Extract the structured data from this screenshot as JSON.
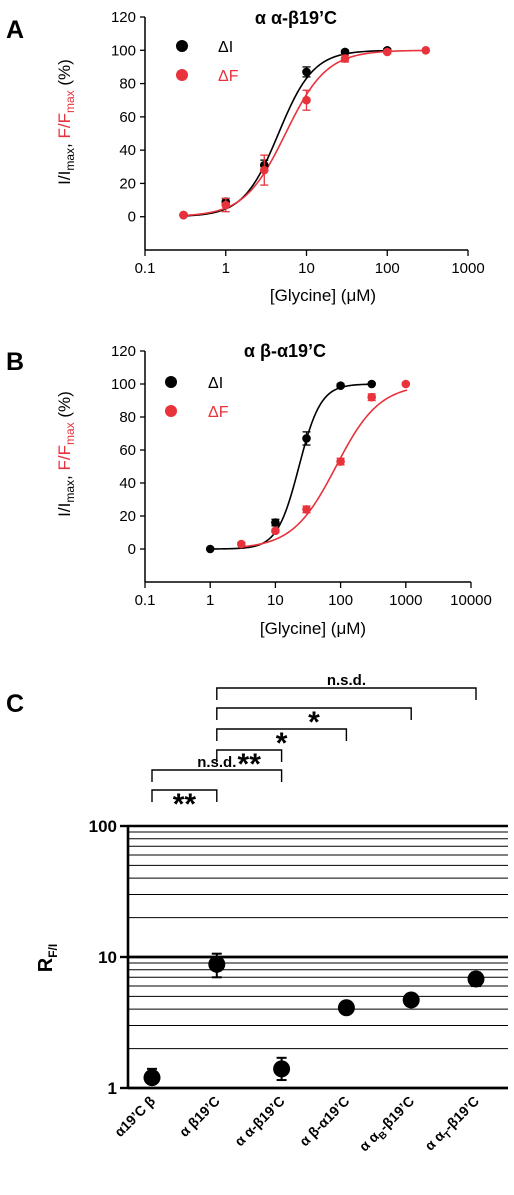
{
  "colors": {
    "black": "#000000",
    "red": "#e8323c"
  },
  "chart_data": [
    {
      "panel": "A",
      "type": "scatter",
      "title": "α α-β19’C",
      "xlabel": "[Glycine] (μM)",
      "ylabel_black": "I/I",
      "ylabel_black_sub": "max",
      "ylabel_sep": ", ",
      "ylabel_red": "F/F",
      "ylabel_red_sub": "max",
      "ylabel_unit": " (%)",
      "xscale": "log",
      "xlim": [
        0.1,
        1000
      ],
      "ylim": [
        -20,
        120
      ],
      "xticks": [
        "0.1",
        "1",
        "10",
        "100",
        "1000"
      ],
      "yticks": [
        "0",
        "20",
        "40",
        "60",
        "80",
        "100",
        "120"
      ],
      "legend_position": "top-left",
      "series": [
        {
          "name": "ΔI",
          "color": "#000000",
          "x": [
            0.3,
            1,
            3,
            10,
            30,
            100
          ],
          "y": [
            1,
            9,
            31,
            87,
            99,
            100
          ],
          "err": [
            0,
            2,
            3,
            3,
            1,
            1
          ],
          "fit": {
            "ec50": 4.5,
            "n": 2.0
          }
        },
        {
          "name": "ΔF",
          "color": "#e8323c",
          "x": [
            0.3,
            1,
            3,
            10,
            30,
            100,
            300
          ],
          "y": [
            1,
            7,
            28,
            70,
            95,
            99,
            100
          ],
          "err": [
            1,
            4,
            9,
            6,
            2,
            1,
            0
          ],
          "fit": {
            "ec50": 5.5,
            "n": 1.7
          }
        }
      ]
    },
    {
      "panel": "B",
      "type": "scatter",
      "title": "α β-α19’C",
      "xlabel": "[Glycine] (μM)",
      "ylabel_black": "I/I",
      "ylabel_black_sub": "max",
      "ylabel_sep": ", ",
      "ylabel_red": "F/F",
      "ylabel_red_sub": "max",
      "ylabel_unit": " (%)",
      "xscale": "log",
      "xlim": [
        0.1,
        10000
      ],
      "ylim": [
        -20,
        120
      ],
      "xticks": [
        "0.1",
        "1",
        "10",
        "100",
        "1000",
        "10000"
      ],
      "yticks": [
        "0",
        "20",
        "40",
        "60",
        "80",
        "100",
        "120"
      ],
      "legend_position": "top-left",
      "series": [
        {
          "name": "ΔI",
          "color": "#000000",
          "x": [
            1,
            10,
            30,
            100,
            300
          ],
          "y": [
            0,
            16,
            67,
            99,
            100
          ],
          "err": [
            0,
            2,
            4,
            1,
            0
          ],
          "fit": {
            "ec50": 23,
            "n": 2.6
          }
        },
        {
          "name": "ΔF",
          "color": "#e8323c",
          "x": [
            3,
            10,
            30,
            100,
            300,
            1000
          ],
          "y": [
            3,
            11,
            24,
            53,
            92,
            100
          ],
          "err": [
            1,
            1,
            2,
            2,
            2,
            0
          ],
          "fit": {
            "ec50": 85,
            "n": 1.3
          }
        }
      ]
    },
    {
      "panel": "C",
      "type": "scatter",
      "ylabel_main": "R",
      "ylabel_sub": "F/I",
      "yscale": "log",
      "ylim": [
        1,
        100
      ],
      "yticks": [
        "1",
        "10",
        "100"
      ],
      "grid": true,
      "categories": [
        "α19’C β",
        "α β19’C",
        "α α-β19’C",
        "α β-α19’C",
        "α α",
        "α α"
      ],
      "category_subs": [
        "",
        "",
        "",
        "",
        "B",
        "T"
      ],
      "category_tails": [
        "",
        "",
        "",
        "",
        "-β19’C",
        "-β19’C"
      ],
      "values": [
        1.2,
        8.8,
        1.4,
        4.1,
        4.7,
        6.8
      ],
      "err_up": [
        0.2,
        1.8,
        0.3,
        0.2,
        0.3,
        0.8
      ],
      "err_down": [
        0.1,
        1.8,
        0.25,
        0.2,
        0.3,
        0.8
      ],
      "significance": [
        {
          "from": 0,
          "to": 1,
          "label": "**",
          "level": 0
        },
        {
          "from": 0,
          "to": 2,
          "label": "n.s.d.",
          "level": 1
        },
        {
          "from": 1,
          "to": 2,
          "label": "**",
          "level": 2
        },
        {
          "from": 1,
          "to": 3,
          "label": "*",
          "level": 3
        },
        {
          "from": 1,
          "to": 4,
          "label": "*",
          "level": 4
        },
        {
          "from": 1,
          "to": 5,
          "label": "n.s.d.",
          "level": 5
        }
      ]
    }
  ]
}
